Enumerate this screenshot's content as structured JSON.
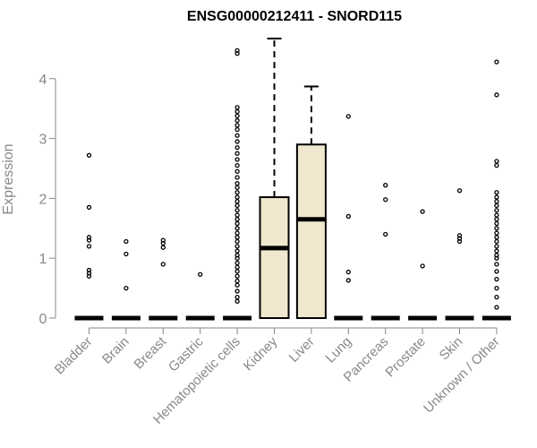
{
  "chart_data": {
    "type": "box",
    "title": "ENSG00000212411 - SNORD115",
    "ylabel": "Expression",
    "xlabel": "",
    "ylim": [
      0,
      4.75
    ],
    "yticks": [
      0,
      1,
      2,
      3,
      4
    ],
    "categories": [
      "Bladder",
      "Brain",
      "Breast",
      "Gastric",
      "Hematopoietic cells",
      "Kidney",
      "Liver",
      "Lung",
      "Pancreas",
      "Prostate",
      "Skin",
      "Unknown / Other"
    ],
    "boxes": [
      {
        "category": "Bladder",
        "q1": 0,
        "median": 0,
        "q3": 0,
        "whisker_low": 0,
        "whisker_high": 0,
        "outliers": [
          0.7,
          0.75,
          0.8,
          1.2,
          1.3,
          1.35,
          1.85,
          2.72
        ]
      },
      {
        "category": "Brain",
        "q1": 0,
        "median": 0,
        "q3": 0,
        "whisker_low": 0,
        "whisker_high": 0,
        "outliers": [
          0.5,
          1.07,
          1.28
        ]
      },
      {
        "category": "Breast",
        "q1": 0,
        "median": 0,
        "q3": 0,
        "whisker_low": 0,
        "whisker_high": 0,
        "outliers": [
          0.9,
          1.18,
          1.25,
          1.3
        ]
      },
      {
        "category": "Gastric",
        "q1": 0,
        "median": 0,
        "q3": 0,
        "whisker_low": 0,
        "whisker_high": 0,
        "outliers": [
          0.73
        ]
      },
      {
        "category": "Hematopoietic cells",
        "q1": 0,
        "median": 0,
        "q3": 0,
        "whisker_low": 0,
        "whisker_high": 0,
        "outliers": [
          0.28,
          0.35,
          0.45,
          0.55,
          0.62,
          0.7,
          0.78,
          0.85,
          0.92,
          1.0,
          1.05,
          1.12,
          1.2,
          1.28,
          1.35,
          1.42,
          1.5,
          1.58,
          1.65,
          1.72,
          1.8,
          1.88,
          1.95,
          2.02,
          2.1,
          2.18,
          2.25,
          2.35,
          2.45,
          2.55,
          2.65,
          2.75,
          2.85,
          2.95,
          3.05,
          3.15,
          3.22,
          3.3,
          3.38,
          3.45,
          3.52,
          4.42,
          4.47
        ]
      },
      {
        "category": "Kidney",
        "q1": 0,
        "median": 1.17,
        "q3": 2.02,
        "whisker_low": 0,
        "whisker_high": 4.67,
        "outliers": []
      },
      {
        "category": "Liver",
        "q1": 0,
        "median": 1.65,
        "q3": 2.9,
        "whisker_low": 0,
        "whisker_high": 3.87,
        "outliers": []
      },
      {
        "category": "Lung",
        "q1": 0,
        "median": 0,
        "q3": 0,
        "whisker_low": 0,
        "whisker_high": 0,
        "outliers": [
          0.63,
          0.77,
          1.7,
          3.37
        ]
      },
      {
        "category": "Pancreas",
        "q1": 0,
        "median": 0,
        "q3": 0,
        "whisker_low": 0,
        "whisker_high": 0,
        "outliers": [
          1.4,
          1.98,
          2.22
        ]
      },
      {
        "category": "Prostate",
        "q1": 0,
        "median": 0,
        "q3": 0,
        "whisker_low": 0,
        "whisker_high": 0,
        "outliers": [
          0.87,
          1.78
        ]
      },
      {
        "category": "Skin",
        "q1": 0,
        "median": 0,
        "q3": 0,
        "whisker_low": 0,
        "whisker_high": 0,
        "outliers": [
          1.28,
          1.33,
          1.38,
          2.13
        ]
      },
      {
        "category": "Unknown / Other",
        "q1": 0,
        "median": 0,
        "q3": 0,
        "whisker_low": 0,
        "whisker_high": 0,
        "outliers": [
          0.18,
          0.35,
          0.5,
          0.65,
          0.78,
          0.9,
          1.0,
          1.05,
          1.12,
          1.2,
          1.28,
          1.35,
          1.42,
          1.5,
          1.58,
          1.65,
          1.72,
          1.8,
          1.88,
          1.95,
          2.02,
          2.1,
          2.55,
          2.62,
          3.73,
          4.28
        ]
      }
    ],
    "box_fill": "#efe8cf",
    "box_stroke": "#000000",
    "axis_color": "#888888",
    "grid": false,
    "legend": "none"
  }
}
